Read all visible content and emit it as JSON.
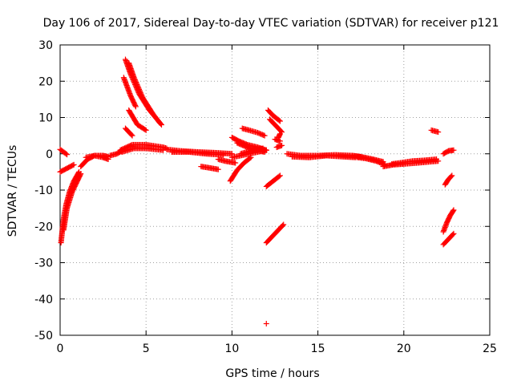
{
  "chart_data": {
    "type": "scatter",
    "title": "Day 106 of 2017, Sidereal Day-to-day VTEC variation (SDTVAR) for receiver p121",
    "xlabel": "GPS time / hours",
    "ylabel": "SDTVAR / TECUs",
    "xlim": [
      0,
      25
    ],
    "ylim": [
      -50,
      30
    ],
    "xticks": [
      0,
      5,
      10,
      15,
      20,
      25
    ],
    "yticks": [
      -50,
      -40,
      -30,
      -20,
      -10,
      0,
      10,
      20,
      30
    ],
    "grid": true,
    "marker": "+",
    "color": "#ff0000",
    "segments": [
      {
        "x": [
          0.0,
          0.4
        ],
        "y": [
          1.2,
          -0.2
        ]
      },
      {
        "x": [
          0.0,
          0.8
        ],
        "y": [
          -5.0,
          -3.0
        ]
      },
      {
        "x": [
          0.05,
          0.2,
          0.35,
          0.55,
          0.8,
          1.1
        ],
        "y": [
          -24.5,
          -18.0,
          -14.0,
          -10.5,
          -7.5,
          -5.0
        ]
      },
      {
        "x": [
          0.2,
          0.4,
          0.7,
          1.0,
          1.2
        ],
        "y": [
          -21.0,
          -15.0,
          -10.5,
          -7.5,
          -5.5
        ]
      },
      {
        "x": [
          1.2,
          1.6,
          2.0,
          2.5,
          2.8
        ],
        "y": [
          -3.5,
          -1.5,
          -0.5,
          -1.0,
          -1.5
        ]
      },
      {
        "x": [
          1.5,
          2.0,
          2.5,
          2.8
        ],
        "y": [
          -1.0,
          -0.5,
          -0.5,
          -0.8
        ]
      },
      {
        "x": [
          2.9,
          3.3,
          3.6
        ],
        "y": [
          -0.5,
          0.0,
          0.8
        ]
      },
      {
        "x": [
          3.5,
          4.2,
          5.0,
          6.0,
          6.2
        ],
        "y": [
          1.0,
          2.5,
          2.5,
          1.8,
          1.5
        ]
      },
      {
        "x": [
          3.6,
          4.3,
          5.0,
          6.0
        ],
        "y": [
          0.5,
          1.5,
          1.5,
          1.0
        ]
      },
      {
        "x": [
          3.8,
          4.1,
          4.6,
          5.2,
          5.9
        ],
        "y": [
          26.0,
          22.0,
          16.5,
          12.0,
          8.0
        ]
      },
      {
        "x": [
          4.0,
          4.3,
          4.8,
          5.4,
          5.8
        ],
        "y": [
          25.0,
          21.0,
          15.5,
          11.0,
          8.5
        ]
      },
      {
        "x": [
          3.7,
          4.1,
          4.4
        ],
        "y": [
          21.0,
          16.0,
          13.0
        ]
      },
      {
        "x": [
          3.8,
          4.2
        ],
        "y": [
          7.0,
          5.0
        ]
      },
      {
        "x": [
          4.0,
          4.5,
          5.0
        ],
        "y": [
          12.0,
          8.0,
          6.5
        ]
      },
      {
        "x": [
          6.2,
          7.0,
          8.0,
          9.0,
          10.0
        ],
        "y": [
          1.2,
          0.8,
          0.5,
          0.3,
          0.0
        ]
      },
      {
        "x": [
          6.5,
          7.5,
          8.5,
          9.5
        ],
        "y": [
          0.5,
          0.5,
          0.0,
          -0.3
        ]
      },
      {
        "x": [
          8.2,
          8.6,
          9.2
        ],
        "y": [
          -3.5,
          -3.8,
          -4.3
        ]
      },
      {
        "x": [
          9.2,
          9.6,
          10.2
        ],
        "y": [
          -1.5,
          -2.0,
          -2.5
        ]
      },
      {
        "x": [
          9.9,
          10.3,
          10.7,
          11.1
        ],
        "y": [
          -7.5,
          -4.5,
          -2.5,
          -1.0
        ]
      },
      {
        "x": [
          10.0,
          10.4,
          10.9,
          11.5,
          12.0
        ],
        "y": [
          4.5,
          3.5,
          2.5,
          1.8,
          1.0
        ]
      },
      {
        "x": [
          10.3,
          10.8,
          11.3,
          11.9
        ],
        "y": [
          3.0,
          2.0,
          1.0,
          0.5
        ]
      },
      {
        "x": [
          10.6,
          11.0,
          11.5,
          11.9
        ],
        "y": [
          7.0,
          6.5,
          5.8,
          5.0
        ]
      },
      {
        "x": [
          10.0,
          10.5,
          11.0,
          11.5,
          12.0
        ],
        "y": [
          -1.0,
          -0.5,
          0.0,
          0.5,
          1.0
        ]
      },
      {
        "x": [
          10.5,
          11.2,
          11.8
        ],
        "y": [
          0.0,
          1.0,
          1.5
        ]
      },
      {
        "x": [
          12.1,
          12.4,
          12.8
        ],
        "y": [
          12.0,
          10.5,
          9.0
        ]
      },
      {
        "x": [
          12.2,
          12.6,
          12.9
        ],
        "y": [
          9.5,
          7.5,
          6.0
        ]
      },
      {
        "x": [
          12.5,
          12.8
        ],
        "y": [
          4.0,
          3.5
        ]
      },
      {
        "x": [
          12.8,
          12.7
        ],
        "y": [
          5.5,
          4.5
        ]
      },
      {
        "x": [
          12.6,
          12.9
        ],
        "y": [
          1.8,
          2.3
        ]
      },
      {
        "x": [
          12.0,
          12.4,
          12.8
        ],
        "y": [
          -9.0,
          -7.5,
          -6.0
        ]
      },
      {
        "x": [
          12.0,
          12.4,
          12.8,
          13.0
        ],
        "y": [
          -24.5,
          -22.5,
          -20.5,
          -19.5
        ]
      },
      {
        "x": [
          12.0
        ],
        "y": [
          -46.8
        ]
      },
      {
        "x": [
          13.2,
          14.0,
          15.0,
          16.0,
          17.0,
          17.5
        ],
        "y": [
          0.0,
          -0.5,
          -0.5,
          -0.3,
          -0.5,
          -0.8
        ]
      },
      {
        "x": [
          13.5,
          14.5,
          15.5,
          16.5,
          17.2
        ],
        "y": [
          -0.8,
          -1.0,
          -0.5,
          -0.8,
          -1.0
        ]
      },
      {
        "x": [
          17.3,
          17.8,
          18.4,
          18.9
        ],
        "y": [
          -1.0,
          -1.3,
          -2.0,
          -3.0
        ]
      },
      {
        "x": [
          17.0,
          17.6,
          18.2,
          18.8
        ],
        "y": [
          -0.5,
          -0.9,
          -1.5,
          -2.2
        ]
      },
      {
        "x": [
          18.8,
          19.4,
          20.0,
          20.8,
          21.5,
          22.0
        ],
        "y": [
          -3.5,
          -3.0,
          -2.8,
          -2.5,
          -2.2,
          -2.0
        ]
      },
      {
        "x": [
          19.3,
          19.8,
          20.5,
          21.2,
          21.9
        ],
        "y": [
          -2.8,
          -2.5,
          -2.0,
          -1.8,
          -1.5
        ]
      },
      {
        "x": [
          21.6,
          22.0
        ],
        "y": [
          6.5,
          6.0
        ]
      },
      {
        "x": [
          22.3,
          22.6,
          22.9
        ],
        "y": [
          0.0,
          0.8,
          1.0
        ]
      },
      {
        "x": [
          22.4,
          22.6,
          22.8
        ],
        "y": [
          -8.5,
          -7.0,
          -6.0
        ]
      },
      {
        "x": [
          22.3,
          22.5,
          22.7,
          22.9
        ],
        "y": [
          -21.5,
          -19.0,
          -17.0,
          -15.5
        ]
      },
      {
        "x": [
          22.3,
          22.6,
          22.9
        ],
        "y": [
          -25.0,
          -23.5,
          -22.0
        ]
      }
    ]
  }
}
